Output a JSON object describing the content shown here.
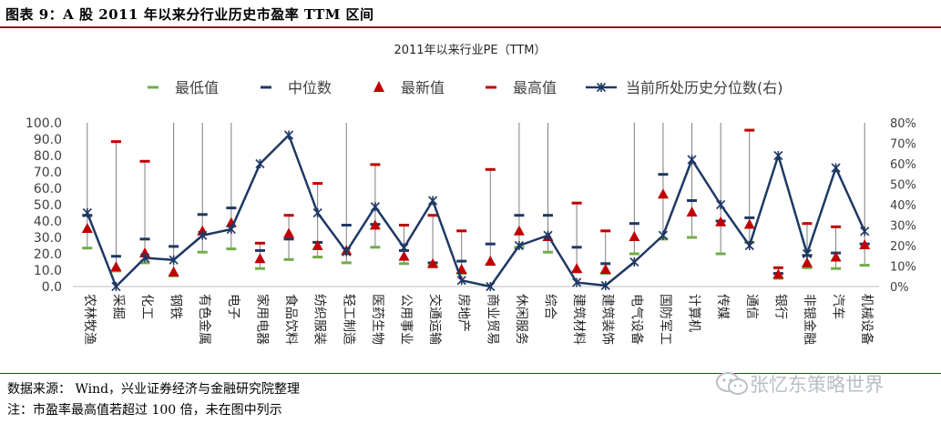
{
  "figure": {
    "title": "图表 9：A 股 2011 年以来分行业历史市盈率 TTM 区间",
    "source": "数据来源：  Wind，兴业证券经济与金融研究院整理",
    "note": "注：市盈率最高值若超过 100 倍，未在图中列示",
    "watermark": "张忆东策略世界"
  },
  "colors": {
    "rule": "#8c1c1c",
    "min": "#70ad47",
    "median": "#1f3864",
    "latest": "#c00000",
    "max": "#c00000",
    "pct": "#1f3864",
    "range": "#7f7f7f"
  },
  "chart_data": {
    "type": "line",
    "title": "2011年以来行业PE（TTM）",
    "legend": {
      "position": "top",
      "entries": [
        "最低值",
        "中位数",
        "最新值",
        "最高值",
        "当前所处历史分位数(右)"
      ]
    },
    "categories": [
      "农林牧渔",
      "采掘",
      "化工",
      "钢铁",
      "有色金属",
      "电子",
      "家用电器",
      "食品饮料",
      "纺织服装",
      "轻工制造",
      "医药生物",
      "公用事业",
      "交通运输",
      "房地产",
      "商业贸易",
      "休闲服务",
      "综合",
      "建筑材料",
      "建筑装饰",
      "电气设备",
      "国防军工",
      "计算机",
      "传媒",
      "通信",
      "银行",
      "非银金融",
      "汽车",
      "机械设备"
    ],
    "y_left": {
      "min": 0,
      "max": 100,
      "ticks": [
        "0.0",
        "10.0",
        "20.0",
        "30.0",
        "40.0",
        "50.0",
        "60.0",
        "70.0",
        "80.0",
        "90.0",
        "100.0"
      ]
    },
    "y_right": {
      "min": 0,
      "max": 80,
      "ticks": [
        "0%",
        "10%",
        "20%",
        "30%",
        "40%",
        "50%",
        "60%",
        "70%",
        "80%"
      ]
    },
    "grid": false,
    "series": [
      {
        "name": "最低值",
        "marker": "dash",
        "values": [
          23.5,
          9.5,
          14.5,
          6.5,
          21,
          23,
          11,
          16.5,
          18,
          14.5,
          24,
          14,
          12.5,
          8,
          13.5,
          24,
          21,
          9,
          8,
          20,
          29,
          30,
          20,
          27,
          5,
          11.5,
          11,
          13
        ]
      },
      {
        "name": "中位数",
        "marker": "dash",
        "values": [
          43.5,
          18.5,
          29,
          24.5,
          44,
          48,
          22,
          29,
          27,
          37.5,
          38,
          22,
          14.5,
          15.5,
          26,
          43.5,
          43.5,
          24,
          14,
          38.5,
          68.5,
          52.5,
          40,
          42,
          8,
          19,
          20.5,
          26
        ]
      },
      {
        "name": "最新值",
        "marker": "triangle",
        "values": [
          35,
          11.5,
          20,
          8.5,
          33.5,
          38.5,
          16.5,
          32,
          24.5,
          21.5,
          37,
          18,
          13.5,
          10,
          15,
          33.5,
          30,
          10.5,
          10,
          30,
          56,
          45,
          39,
          37.5,
          7,
          14,
          17.5,
          25
        ]
      },
      {
        "name": "最高值",
        "marker": "dash",
        "values": [
          null,
          88.5,
          76.5,
          null,
          null,
          null,
          26.5,
          43.5,
          63,
          null,
          74.5,
          37.5,
          43.5,
          34,
          71.5,
          null,
          null,
          51,
          34,
          null,
          null,
          null,
          null,
          95.5,
          11.5,
          38.5,
          36.5,
          null
        ]
      },
      {
        "name": "当前所处历史分位数(右)",
        "axis": "right",
        "marker": "star",
        "values": [
          36,
          0,
          14,
          13,
          25,
          28,
          60,
          74,
          36,
          17,
          39,
          19,
          42,
          3,
          0,
          20,
          25,
          2,
          0.5,
          12,
          25,
          62,
          40,
          20,
          64,
          16,
          58,
          27
        ]
      }
    ]
  }
}
